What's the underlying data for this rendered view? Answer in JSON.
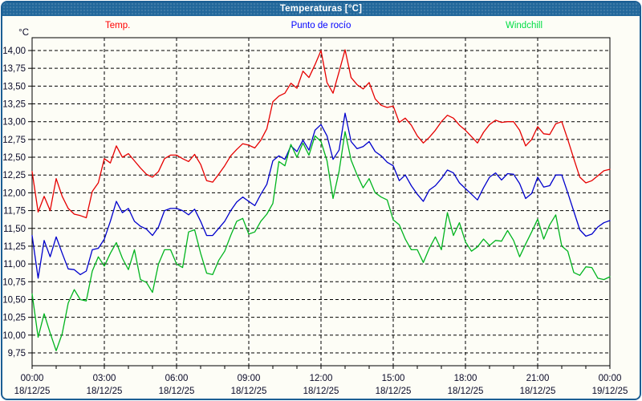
{
  "window": {
    "title": "Temperaturas [°C]"
  },
  "legend": [
    {
      "label": "Temp.",
      "color": "#ff0000"
    },
    {
      "label": "Punto de rocío",
      "color": "#0000ff"
    },
    {
      "label": "Windchill",
      "color": "#00dd44"
    }
  ],
  "chart_data": {
    "type": "line",
    "title": "Temperaturas [°C]",
    "ylabel": "°C",
    "ylim": [
      9.75,
      14.0
    ],
    "ytick_step": 0.25,
    "decimal_separator": ",",
    "grid": "dashed",
    "legend_position": "top",
    "x_unit": "hours",
    "xlim": [
      0,
      24
    ],
    "x_step": 0.25,
    "x_minor_tick_hours": 1,
    "xticks": [
      {
        "hour": 0,
        "time": "00:00",
        "date": "18/12/25"
      },
      {
        "hour": 3,
        "time": "03:00",
        "date": "18/12/25"
      },
      {
        "hour": 6,
        "time": "06:00",
        "date": "18/12/25"
      },
      {
        "hour": 9,
        "time": "09:00",
        "date": "18/12/25"
      },
      {
        "hour": 12,
        "time": "12:00",
        "date": "18/12/25"
      },
      {
        "hour": 15,
        "time": "15:00",
        "date": "18/12/25"
      },
      {
        "hour": 18,
        "time": "18:00",
        "date": "18/12/25"
      },
      {
        "hour": 21,
        "time": "21:00",
        "date": "18/12/25"
      },
      {
        "hour": 24,
        "time": "00:00",
        "date": "19/12/25"
      }
    ],
    "series": [
      {
        "name": "Temp.",
        "color": "#e60000",
        "values": [
          12.3,
          11.73,
          11.95,
          11.75,
          12.2,
          11.95,
          11.78,
          11.7,
          11.68,
          11.65,
          12.02,
          12.14,
          12.48,
          12.42,
          12.66,
          12.5,
          12.55,
          12.45,
          12.35,
          12.26,
          12.22,
          12.3,
          12.48,
          12.53,
          12.53,
          12.48,
          12.44,
          12.54,
          12.4,
          12.17,
          12.15,
          12.26,
          12.38,
          12.52,
          12.61,
          12.69,
          12.67,
          12.63,
          12.74,
          12.9,
          13.28,
          13.36,
          13.4,
          13.54,
          13.47,
          13.71,
          13.62,
          13.8,
          14.0,
          13.55,
          13.4,
          13.7,
          14.01,
          13.62,
          13.52,
          13.46,
          13.55,
          13.32,
          13.23,
          13.2,
          13.22,
          12.99,
          13.05,
          12.95,
          12.8,
          12.7,
          12.78,
          12.88,
          13.0,
          13.09,
          13.05,
          12.95,
          12.88,
          12.79,
          12.7,
          12.85,
          12.96,
          13.02,
          12.99,
          13.0,
          13.0,
          12.88,
          12.66,
          12.75,
          12.93,
          12.83,
          12.82,
          12.97,
          13.0,
          12.75,
          12.48,
          12.22,
          12.14,
          12.17,
          12.24,
          12.31,
          12.33
        ]
      },
      {
        "name": "Punto de rocío",
        "color": "#0000cc",
        "values": [
          11.4,
          10.8,
          11.33,
          11.1,
          11.38,
          11.15,
          10.93,
          10.92,
          10.85,
          10.9,
          11.2,
          11.22,
          11.35,
          11.6,
          11.88,
          11.72,
          11.78,
          11.6,
          11.53,
          11.49,
          11.4,
          11.52,
          11.75,
          11.78,
          11.78,
          11.75,
          11.69,
          11.77,
          11.6,
          11.4,
          11.4,
          11.5,
          11.6,
          11.75,
          11.87,
          11.94,
          11.88,
          11.82,
          11.98,
          12.12,
          12.45,
          12.52,
          12.47,
          12.66,
          12.58,
          12.74,
          12.6,
          12.88,
          12.96,
          12.8,
          12.47,
          12.6,
          13.12,
          12.72,
          12.62,
          12.65,
          12.72,
          12.58,
          12.52,
          12.43,
          12.38,
          12.17,
          12.25,
          12.1,
          11.98,
          11.88,
          12.04,
          12.1,
          12.2,
          12.32,
          12.28,
          12.14,
          12.06,
          11.98,
          11.9,
          12.07,
          12.22,
          12.28,
          12.18,
          12.27,
          12.26,
          12.13,
          11.92,
          11.99,
          12.22,
          12.08,
          12.1,
          12.25,
          12.25,
          12.0,
          11.74,
          11.48,
          11.39,
          11.42,
          11.52,
          11.58,
          11.61
        ]
      },
      {
        "name": "Windchill",
        "color": "#00b41e",
        "values": [
          10.58,
          9.97,
          10.3,
          10.03,
          9.78,
          10.02,
          10.45,
          10.64,
          10.5,
          10.48,
          10.9,
          11.1,
          10.97,
          11.15,
          11.3,
          11.08,
          10.92,
          11.2,
          10.78,
          10.74,
          10.6,
          11.0,
          11.2,
          11.2,
          11.0,
          10.95,
          11.45,
          11.48,
          11.15,
          10.87,
          10.85,
          11.05,
          11.18,
          11.4,
          11.6,
          11.64,
          11.42,
          11.45,
          11.6,
          11.7,
          11.85,
          12.44,
          12.38,
          12.68,
          12.5,
          12.7,
          12.53,
          12.8,
          12.72,
          12.45,
          11.92,
          12.3,
          12.86,
          12.46,
          12.25,
          12.07,
          12.2,
          12.0,
          11.94,
          11.9,
          11.62,
          11.55,
          11.35,
          11.2,
          11.2,
          11.02,
          11.22,
          11.38,
          11.2,
          11.72,
          11.4,
          11.58,
          11.31,
          11.18,
          11.24,
          11.35,
          11.26,
          11.33,
          11.32,
          11.47,
          11.33,
          11.1,
          11.28,
          11.45,
          11.63,
          11.35,
          11.55,
          11.69,
          11.25,
          11.18,
          10.88,
          10.84,
          10.96,
          10.95,
          10.8,
          10.78,
          10.82
        ]
      }
    ]
  }
}
